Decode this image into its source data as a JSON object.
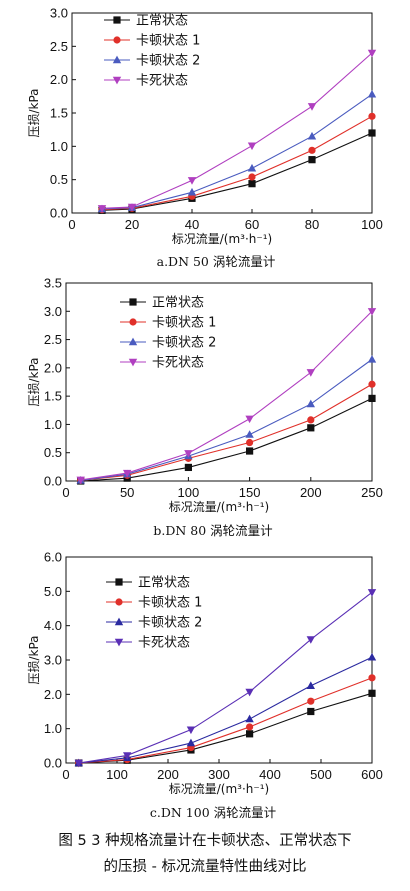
{
  "chart_data": [
    {
      "type": "line",
      "subtitle": "a.DN 50 涡轮流量计",
      "xlabel": "标况流量/(m³·h⁻¹)",
      "ylabel": "压损/kPa",
      "xlim": [
        0,
        100
      ],
      "ylim": [
        0,
        3.0
      ],
      "xticks": [
        "0",
        "20",
        "40",
        "60",
        "80",
        "100"
      ],
      "yticks": [
        "0.0",
        "0.5",
        "1.0",
        "1.5",
        "2.0",
        "2.5",
        "3.0"
      ],
      "x": [
        10,
        20,
        40,
        60,
        80,
        100
      ],
      "legend_position": "top-left",
      "series": [
        {
          "name": "正常状态",
          "color": "#111111",
          "marker": "square",
          "values": [
            0.04,
            0.06,
            0.22,
            0.44,
            0.8,
            1.2
          ]
        },
        {
          "name": "卡顿状态 1",
          "color": "#e0302a",
          "marker": "circle",
          "values": [
            0.05,
            0.07,
            0.25,
            0.54,
            0.94,
            1.45
          ]
        },
        {
          "name": "卡顿状态 2",
          "color": "#4a5bbf",
          "marker": "triangle-up",
          "values": [
            0.06,
            0.08,
            0.31,
            0.67,
            1.15,
            1.78
          ]
        },
        {
          "name": "卡死状态",
          "color": "#b03fc0",
          "marker": "triangle-down",
          "values": [
            0.07,
            0.09,
            0.49,
            1.01,
            1.6,
            2.4
          ]
        }
      ]
    },
    {
      "type": "line",
      "subtitle": "b.DN 80 涡轮流量计",
      "xlabel": "标况流量/(m³·h⁻¹)",
      "ylabel": "压损/kPa",
      "xlim": [
        0,
        250
      ],
      "ylim": [
        0,
        3.5
      ],
      "xticks": [
        "0",
        "50",
        "100",
        "150",
        "200",
        "250"
      ],
      "yticks": [
        "0.0",
        "0.5",
        "1.0",
        "1.5",
        "2.0",
        "2.5",
        "3.0",
        "3.5"
      ],
      "x": [
        12,
        50,
        100,
        150,
        200,
        250
      ],
      "legend_position": "top-left",
      "series": [
        {
          "name": "正常状态",
          "color": "#111111",
          "marker": "square",
          "values": [
            0.0,
            0.05,
            0.24,
            0.53,
            0.94,
            1.46
          ]
        },
        {
          "name": "卡顿状态 1",
          "color": "#e0302a",
          "marker": "circle",
          "values": [
            0.01,
            0.1,
            0.4,
            0.68,
            1.08,
            1.71
          ]
        },
        {
          "name": "卡顿状态 2",
          "color": "#4a5bbf",
          "marker": "triangle-up",
          "values": [
            0.01,
            0.12,
            0.44,
            0.82,
            1.36,
            2.15
          ]
        },
        {
          "name": "卡死状态",
          "color": "#b03fc0",
          "marker": "triangle-down",
          "values": [
            0.02,
            0.14,
            0.49,
            1.1,
            1.92,
            3.0
          ]
        }
      ]
    },
    {
      "type": "line",
      "subtitle": "c.DN 100 涡轮流量计",
      "xlabel": "标况流量/(m³·h⁻¹)",
      "ylabel": "压损/kPa",
      "xlim": [
        0,
        600
      ],
      "ylim": [
        0,
        6.0
      ],
      "xticks": [
        "0",
        "100",
        "200",
        "300",
        "400",
        "500",
        "600"
      ],
      "yticks": [
        "0.0",
        "1.0",
        "2.0",
        "3.0",
        "4.0",
        "5.0",
        "6.0"
      ],
      "x": [
        25,
        120,
        245,
        360,
        480,
        600
      ],
      "legend_position": "top-left",
      "series": [
        {
          "name": "正常状态",
          "color": "#111111",
          "marker": "square",
          "values": [
            0.0,
            0.08,
            0.38,
            0.85,
            1.5,
            2.03
          ]
        },
        {
          "name": "卡顿状态 1",
          "color": "#e0302a",
          "marker": "circle",
          "values": [
            0.0,
            0.1,
            0.45,
            1.05,
            1.8,
            2.48
          ]
        },
        {
          "name": "卡顿状态 2",
          "color": "#2b2aa0",
          "marker": "triangle-up",
          "values": [
            0.0,
            0.15,
            0.58,
            1.28,
            2.25,
            3.08
          ]
        },
        {
          "name": "卡死状态",
          "color": "#5a2fb5",
          "marker": "triangle-down",
          "values": [
            0.0,
            0.22,
            0.97,
            2.07,
            3.6,
            4.97
          ]
        }
      ]
    }
  ],
  "caption": {
    "line1": "图 5   3 种规格流量计在卡顿状态、正常状态下",
    "line2": "的压损 - 标况流量特性曲线对比"
  }
}
